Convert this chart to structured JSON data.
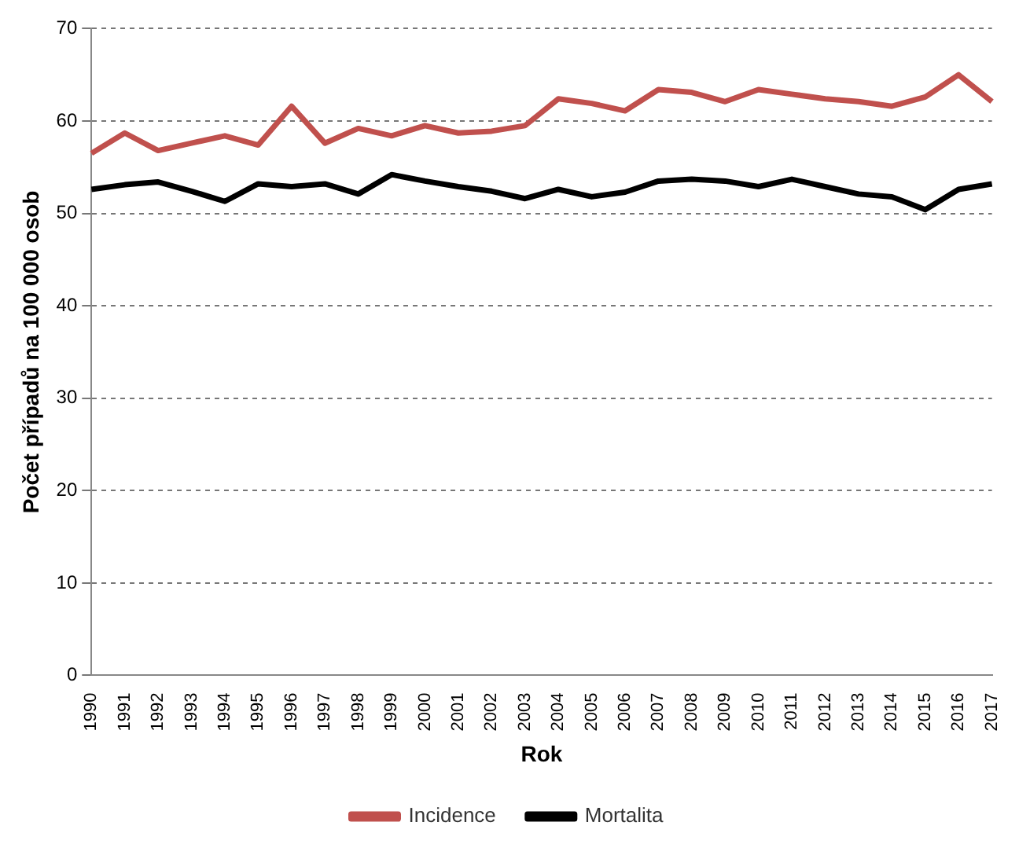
{
  "chart_data": {
    "type": "line",
    "xlabel": "Rok",
    "ylabel": "Počet případů na 100 000 osob",
    "categories": [
      "1990",
      "1991",
      "1992",
      "1993",
      "1994",
      "1995",
      "1996",
      "1997",
      "1998",
      "1999",
      "2000",
      "2001",
      "2002",
      "2003",
      "2004",
      "2005",
      "2006",
      "2007",
      "2008",
      "2009",
      "2010",
      "2011",
      "2012",
      "2013",
      "2014",
      "2015",
      "2016",
      "2017"
    ],
    "series": [
      {
        "name": "Incidence",
        "color": "#c0504d",
        "values": [
          56.5,
          58.7,
          56.8,
          57.6,
          58.4,
          57.4,
          61.6,
          57.6,
          59.2,
          58.4,
          59.5,
          58.7,
          58.9,
          59.5,
          62.4,
          61.9,
          61.1,
          63.4,
          63.1,
          62.1,
          63.4,
          62.9,
          62.4,
          62.1,
          61.6,
          62.6,
          65.0,
          62.1
        ]
      },
      {
        "name": "Mortalita",
        "color": "#000000",
        "values": [
          52.6,
          53.1,
          53.4,
          52.4,
          51.3,
          53.2,
          52.9,
          53.2,
          52.1,
          54.2,
          53.5,
          52.9,
          52.4,
          51.6,
          52.6,
          51.8,
          52.3,
          53.5,
          53.7,
          53.5,
          52.9,
          53.7,
          52.9,
          52.1,
          51.8,
          50.4,
          52.6,
          53.2
        ]
      }
    ],
    "ylim": [
      0,
      70
    ],
    "yticks": [
      0,
      10,
      20,
      30,
      40,
      50,
      60,
      70
    ],
    "grid": "y",
    "legend": "bottom",
    "marker": "none",
    "line_style": "solid"
  }
}
